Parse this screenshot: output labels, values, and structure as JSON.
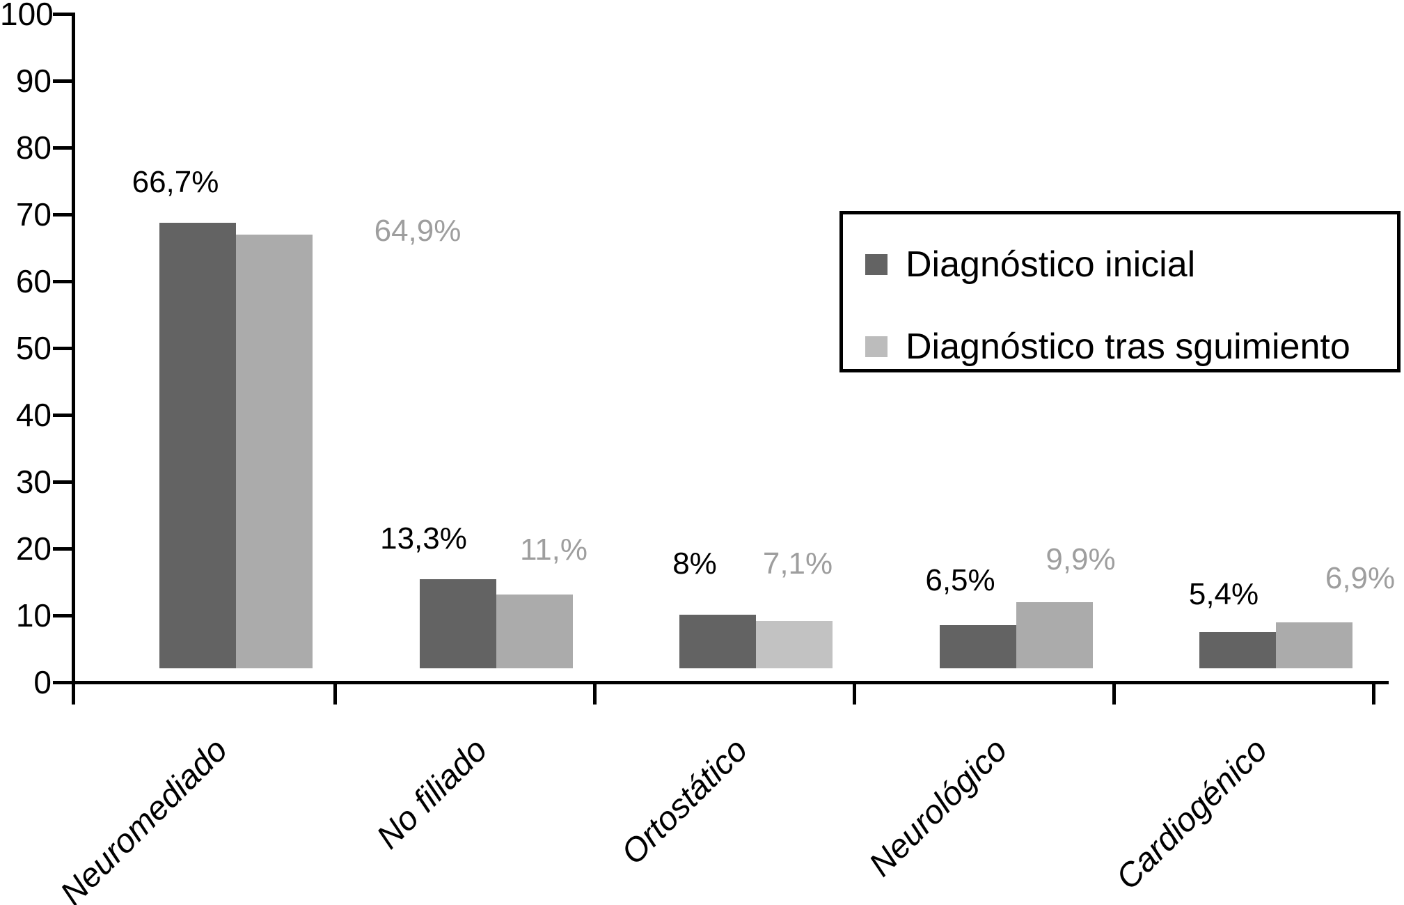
{
  "chart_data": {
    "type": "bar",
    "title": "",
    "xlabel": "",
    "ylabel": "",
    "categories": [
      "Neuromediado",
      "No filiado",
      "Ortostático",
      "Neurológico",
      "Cardiogénico"
    ],
    "series": [
      {
        "name": "Diagnóstico inicial",
        "color": "#636363",
        "label_color": "#000000",
        "values": [
          66.7,
          13.3,
          8,
          6.5,
          5.4
        ],
        "value_labels": [
          "66,7%",
          "13,3%",
          "8%",
          "6,5%",
          "5,4%"
        ]
      },
      {
        "name": "Diagnóstico tras sguimiento",
        "color": "#ababab",
        "legend_swatch": "#bcbcbc",
        "label_color": "#9e9e9e",
        "bar_colors": [
          "#ababab",
          "#ababab",
          "#c2c2c2",
          "#ababab",
          "#ababab"
        ],
        "values": [
          64.9,
          11.0,
          7.1,
          9.9,
          6.9
        ],
        "value_labels": [
          "64,9%",
          "11,%",
          "7,1%",
          "9,9%",
          "6,9%"
        ]
      }
    ],
    "ylim": [
      0,
      100
    ],
    "yticks": [
      0,
      10,
      20,
      30,
      40,
      50,
      60,
      70,
      80,
      90,
      100
    ],
    "grid": false,
    "legend_position": "top-right"
  }
}
